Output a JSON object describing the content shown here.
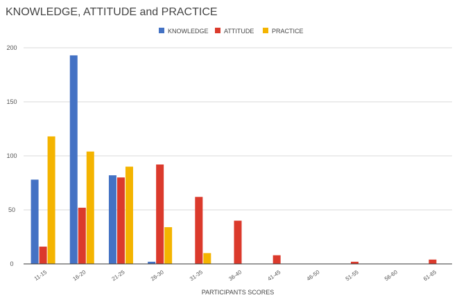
{
  "chart_data": {
    "type": "bar",
    "title": "KNOWLEDGE, ATTITUDE and PRACTICE",
    "xlabel": "PARTICIPANTS SCORES",
    "ylabel": "",
    "categories": [
      "11-15",
      "16-20",
      "21-25",
      "26-30",
      "31-35",
      "36-40",
      "41-45",
      "46-50",
      "51-55",
      "56-60",
      "61-65"
    ],
    "series": [
      {
        "name": "KNOWLEDGE",
        "color": "#4472c4",
        "values": [
          78,
          193,
          82,
          2,
          0,
          0,
          0,
          0,
          0,
          0,
          0
        ]
      },
      {
        "name": "ATTITUDE",
        "color": "#db3a2c",
        "values": [
          16,
          52,
          80,
          92,
          62,
          40,
          8,
          0,
          2,
          0,
          4
        ]
      },
      {
        "name": "PRACTICE",
        "color": "#f4b400",
        "values": [
          118,
          104,
          90,
          34,
          10,
          0,
          0,
          0,
          0,
          0,
          0
        ]
      }
    ],
    "ylim": [
      0,
      200
    ],
    "yticks": [
      0,
      50,
      100,
      150,
      200
    ],
    "grid": true,
    "legend": "top-center"
  }
}
